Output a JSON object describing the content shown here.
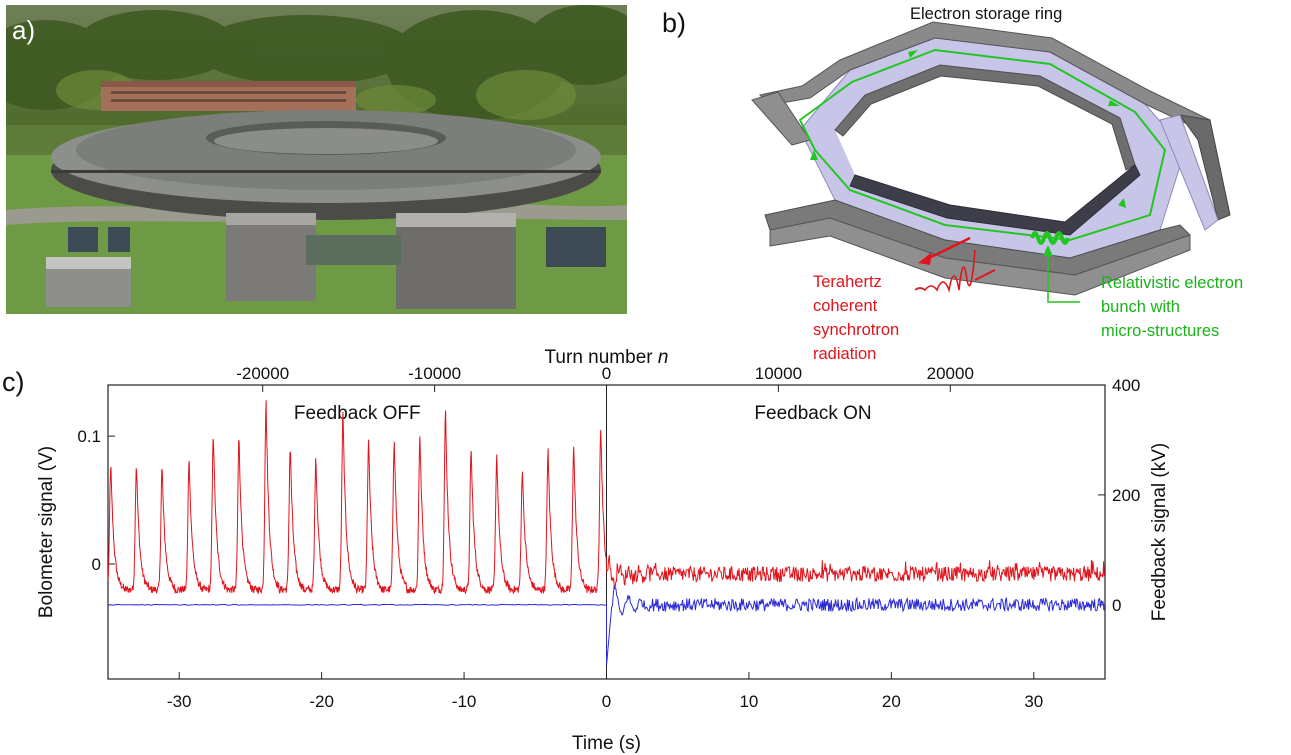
{
  "panels": {
    "a": {
      "label": "a)"
    },
    "b": {
      "label": "b)",
      "title": "Electron storage ring",
      "thz_label": [
        "Terahertz",
        "coherent",
        "synchrotron",
        "radiation"
      ],
      "bunch_label": [
        "Relativistic electron",
        "bunch with",
        "micro-structures"
      ]
    },
    "c": {
      "label": "c)"
    }
  },
  "colors": {
    "red": "#e0141c",
    "blue": "#2a2ad8",
    "green": "#19b219"
  },
  "chart_data": {
    "type": "line",
    "title": "",
    "xlabel": "Time (s)",
    "x_top_label": "Turn number",
    "x_top_label_italic": "n",
    "ylabel_left": "Bolometer signal (V)",
    "ylabel_right": "Feedback signal (kV)",
    "xlim": [
      -35,
      35
    ],
    "xticks": [
      -30,
      -20,
      -10,
      0,
      10,
      20,
      30
    ],
    "xticklabels": [
      "-30",
      "-20",
      "-10",
      "0",
      "10",
      "20",
      "30"
    ],
    "top_xlim": [
      -29000,
      29000
    ],
    "top_xticks": [
      -20000,
      -10000,
      0,
      10000,
      20000
    ],
    "top_xticklabels": [
      "-20000",
      "-10000",
      "0",
      "10000",
      "20000"
    ],
    "ylim_left": [
      -0.09,
      0.14
    ],
    "yticks_left": [
      0,
      0.1
    ],
    "yticklabels_left": [
      "0",
      "0.1"
    ],
    "ylim_right": [
      -135,
      400
    ],
    "yticks_right": [
      0,
      200,
      400
    ],
    "yticklabels_right": [
      "0",
      "200",
      "400"
    ],
    "annotations": [
      "Feedback OFF",
      "Feedback ON"
    ],
    "feedback_switch_time": 0,
    "series": [
      {
        "axis": "left",
        "color": "#e0141c",
        "description_points": {
          "x": [
            -34.8,
            -33,
            -31.2,
            -29.3,
            -27.6,
            -25.8,
            -23.9,
            -22.2,
            -20.4,
            -18.5,
            -16.7,
            -14.9,
            -13.1,
            -11.3,
            -9.5,
            -7.7,
            -5.9,
            -4.1,
            -2.3,
            -0.4
          ],
          "peaks": [
            0.078,
            0.078,
            0.076,
            0.082,
            0.103,
            0.099,
            0.126,
            0.092,
            0.083,
            0.118,
            0.096,
            0.098,
            0.101,
            0.118,
            0.09,
            0.085,
            0.074,
            0.088,
            0.092,
            0.108
          ]
        },
        "baseline_off": -0.02,
        "mean_on": -0.008,
        "noise_on": 0.006
      },
      {
        "axis": "right",
        "color": "#2a2ad8",
        "level_off": 0,
        "transient_min": -110,
        "transient_max": 35,
        "mean_on": 0,
        "noise_on": 12
      }
    ]
  }
}
